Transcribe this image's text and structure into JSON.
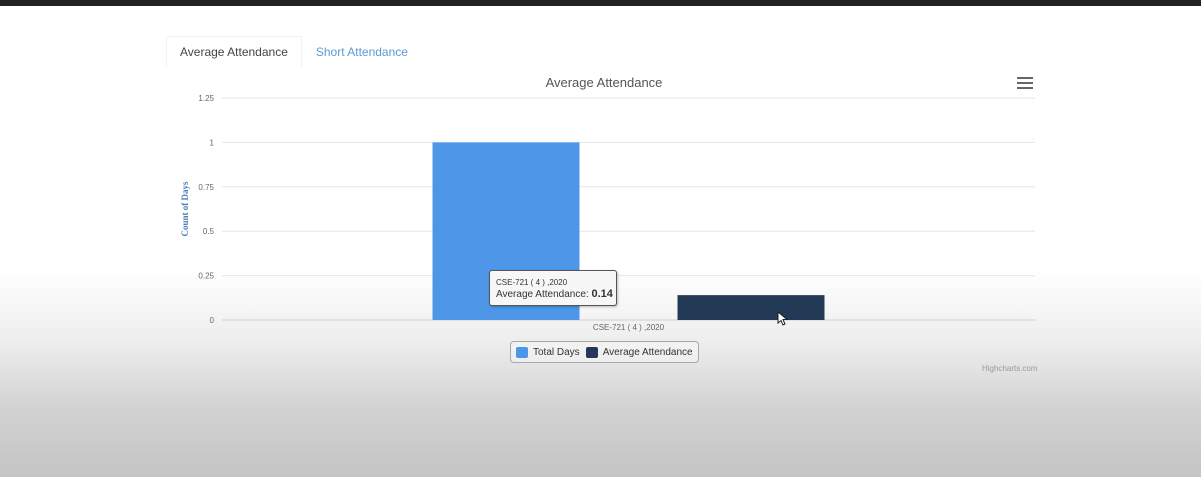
{
  "tabs": [
    {
      "label": "Average Attendance",
      "active": true
    },
    {
      "label": "Short Attendance",
      "active": false
    }
  ],
  "menu_icon": "hamburger-menu-icon",
  "chart_data": {
    "type": "bar",
    "title": "Average Attendance",
    "xlabel": "",
    "ylabel": "Count of Days",
    "categories": [
      "CSE-721 ( 4 ) ,2020"
    ],
    "series": [
      {
        "name": "Total Days",
        "values": [
          1
        ],
        "color": "#4d96e8"
      },
      {
        "name": "Average Attendance",
        "values": [
          0.14
        ],
        "color": "#223a56"
      }
    ],
    "ylim": [
      0,
      1.25
    ],
    "yticks": [
      "0",
      "0.25",
      "0.5",
      "0.75",
      "1",
      "1.25"
    ],
    "grid": true,
    "legend_position": "bottom-center",
    "tooltip": {
      "header": "CSE-721 ( 4 ) ,2020",
      "series_label": "Average Attendance:",
      "value": "0.14"
    },
    "credits": "Highcharts.com"
  },
  "colors": {
    "tab_inactive": "#5a9bd4",
    "title": "#555555",
    "axis_label": "#4d7fb8"
  }
}
